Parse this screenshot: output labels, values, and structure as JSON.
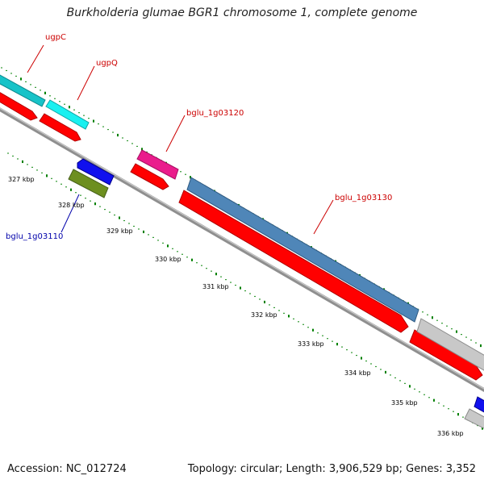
{
  "title": "Burkholderia glumae BGR1 chromosome 1, complete genome",
  "footer": {
    "accession": "Accession: NC_012724",
    "topology": "Topology: circular; Length: 3,906,529 bp; Genes: 3,352"
  },
  "colors": {
    "forward_label": "#cc0000",
    "reverse_label": "#0000aa",
    "tick": "#008000",
    "backbone": "#888888"
  },
  "scale_labels": [
    "327 kbp",
    "328 kbp",
    "329 kbp",
    "330 kbp",
    "331 kbp",
    "332 kbp",
    "333 kbp",
    "334 kbp",
    "335 kbp",
    "336 kbp"
  ],
  "genes": [
    {
      "name": "ugpC",
      "strand": "forward",
      "color": "#17c3c8"
    },
    {
      "name": "ugpQ",
      "strand": "forward",
      "color": "#19f0f0"
    },
    {
      "name": "bglu_1g03120",
      "strand": "forward",
      "color": "#ea1c8c"
    },
    {
      "name": "bglu_1g03130",
      "strand": "forward",
      "color": "#4f86b8"
    },
    {
      "name": "bglu_1g03110",
      "strand": "reverse",
      "color": "#6d8f1f"
    }
  ]
}
